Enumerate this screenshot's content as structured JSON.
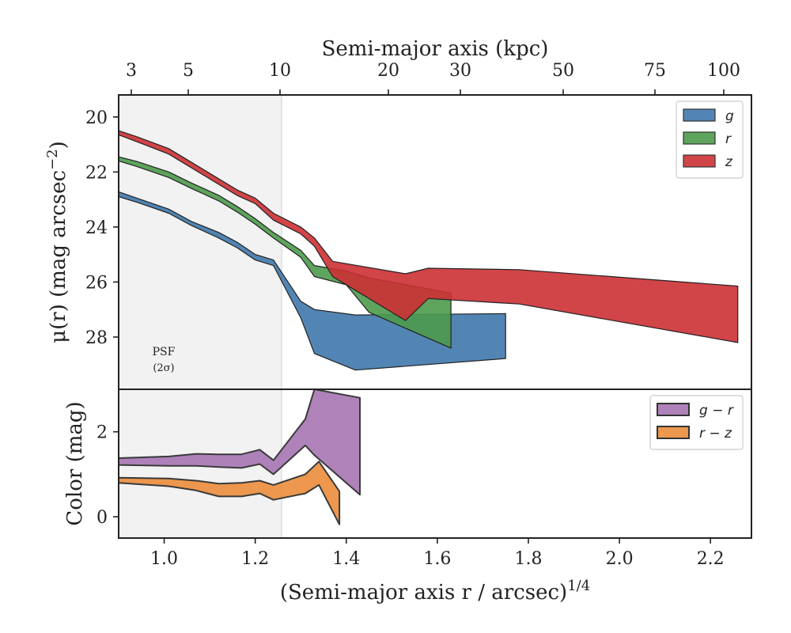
{
  "chart_data": [
    {
      "type": "area",
      "panel": "top",
      "top_axis": {
        "label": "Semi-major axis (kpc)",
        "ticks": [
          3,
          5,
          10,
          20,
          30,
          50,
          75,
          100
        ],
        "tick_labels": [
          "3",
          "5",
          "10",
          "20",
          "30",
          "50",
          "75",
          "100"
        ]
      },
      "ylabel_prefix": "μ(r) (mag arcsec",
      "ylabel_sup": "−2",
      "ylabel_suffix": ")",
      "ylim": [
        29.9,
        19.2
      ],
      "yticks": [
        20,
        22,
        24,
        26,
        28
      ],
      "xlim": [
        0.9,
        2.29
      ],
      "psf_region": {
        "x_max": 1.258,
        "label_line1": "PSF",
        "label_line2": "(2σ)"
      },
      "legend_placement": "top-right",
      "series": [
        {
          "name": "g",
          "color": "#3f78ab",
          "x": [
            0.9,
            0.94,
            1.01,
            1.06,
            1.12,
            1.16,
            1.2,
            1.24,
            1.3,
            1.33,
            1.42,
            1.75
          ],
          "y_upper": [
            22.72,
            22.95,
            23.35,
            23.8,
            24.2,
            24.55,
            25.0,
            25.2,
            26.7,
            27.0,
            27.2,
            27.15
          ],
          "y_lower": [
            22.9,
            23.1,
            23.5,
            23.95,
            24.4,
            24.75,
            25.2,
            25.4,
            27.3,
            28.6,
            29.2,
            28.78
          ]
        },
        {
          "name": "r",
          "color": "#4c9a4b",
          "x": [
            0.9,
            0.94,
            1.01,
            1.06,
            1.12,
            1.16,
            1.2,
            1.24,
            1.3,
            1.33,
            1.4,
            1.45,
            1.63
          ],
          "y_upper": [
            21.45,
            21.62,
            22.0,
            22.4,
            22.85,
            23.25,
            23.7,
            24.2,
            24.85,
            25.4,
            25.6,
            25.85,
            26.4
          ],
          "y_lower": [
            21.6,
            21.8,
            22.2,
            22.6,
            23.05,
            23.45,
            23.9,
            24.4,
            25.1,
            25.8,
            26.1,
            27.1,
            28.4
          ]
        },
        {
          "name": "z",
          "color": "#cc3034",
          "x": [
            0.9,
            0.94,
            1.01,
            1.06,
            1.12,
            1.16,
            1.2,
            1.24,
            1.3,
            1.33,
            1.37,
            1.53,
            1.58,
            1.78,
            2.26
          ],
          "y_upper": [
            20.5,
            20.72,
            21.15,
            21.65,
            22.25,
            22.65,
            22.95,
            23.5,
            24.0,
            24.4,
            25.25,
            25.7,
            25.5,
            25.55,
            26.15
          ],
          "y_lower": [
            20.65,
            20.9,
            21.35,
            21.85,
            22.45,
            22.85,
            23.15,
            23.75,
            24.25,
            24.7,
            25.8,
            27.4,
            26.6,
            26.8,
            28.2
          ]
        }
      ]
    },
    {
      "type": "area",
      "panel": "bottom",
      "xlabel_main": "(Semi-major axis r / arcsec)",
      "xlabel_sup": "1/4",
      "ylabel": "Color (mag)",
      "xlim": [
        0.9,
        2.29
      ],
      "ylim": [
        -0.5,
        3.0
      ],
      "xticks": [
        1.0,
        1.2,
        1.4,
        1.6,
        1.8,
        2.0,
        2.2
      ],
      "xtick_labels": [
        "1.0",
        "1.2",
        "1.4",
        "1.6",
        "1.8",
        "2.0",
        "2.2"
      ],
      "yticks": [
        0,
        2
      ],
      "legend_placement": "top-right",
      "series": [
        {
          "name": "g − r",
          "color": "#a674b3",
          "x": [
            0.9,
            1.01,
            1.07,
            1.12,
            1.17,
            1.21,
            1.24,
            1.31,
            1.33,
            1.43
          ],
          "y_upper": [
            1.38,
            1.42,
            1.48,
            1.47,
            1.47,
            1.58,
            1.33,
            2.3,
            3.0,
            2.8
          ],
          "y_lower": [
            1.22,
            1.2,
            1.2,
            1.17,
            1.15,
            1.24,
            1.0,
            1.68,
            1.45,
            0.52
          ]
        },
        {
          "name": "r − z",
          "color": "#eb8d3b",
          "x": [
            0.9,
            1.01,
            1.07,
            1.12,
            1.17,
            1.21,
            1.24,
            1.31,
            1.34,
            1.385
          ],
          "y_upper": [
            0.92,
            0.9,
            0.85,
            0.78,
            0.8,
            0.85,
            0.75,
            1.0,
            1.3,
            0.6
          ],
          "y_lower": [
            0.8,
            0.72,
            0.62,
            0.48,
            0.48,
            0.55,
            0.4,
            0.55,
            0.75,
            -0.18
          ]
        }
      ]
    }
  ]
}
